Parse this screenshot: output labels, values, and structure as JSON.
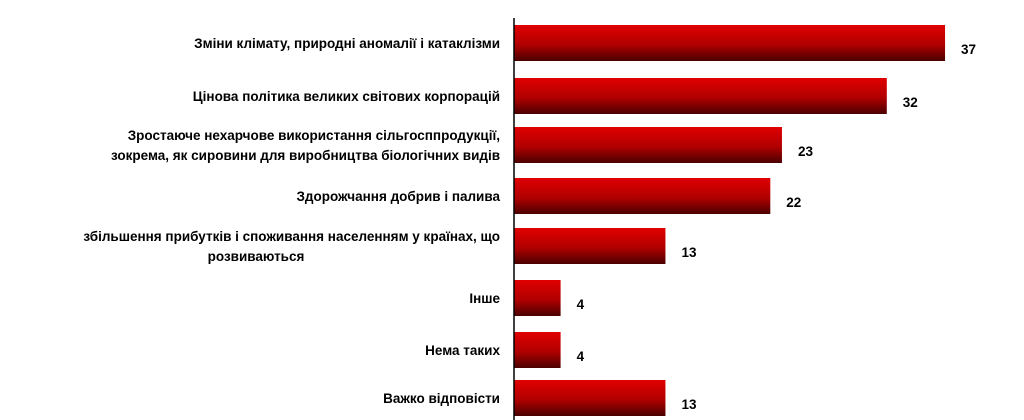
{
  "chart_data": {
    "type": "bar",
    "orientation": "horizontal",
    "categories": [
      [
        "Зміни клімату, природні аномалії і катаклізми"
      ],
      [
        "Цінова політика великих світових корпорацій"
      ],
      [
        "Зростаюче нехарчове використання сільгосппродукції,",
        "зокрема, як сировини для виробництва біологічних видів"
      ],
      [
        "Здорожчання добрив і палива"
      ],
      [
        "збільшення прибутків і споживання населенням у країнах, що",
        "розвиваються"
      ],
      [
        "Інше"
      ],
      [
        "Нема таких"
      ],
      [
        "Важко відповісти"
      ]
    ],
    "values": [
      37,
      32,
      23,
      22,
      13,
      4,
      4,
      13
    ],
    "bar_color": "#e00000",
    "bar_dark": "#4a0000",
    "axis_color": "#000000"
  }
}
